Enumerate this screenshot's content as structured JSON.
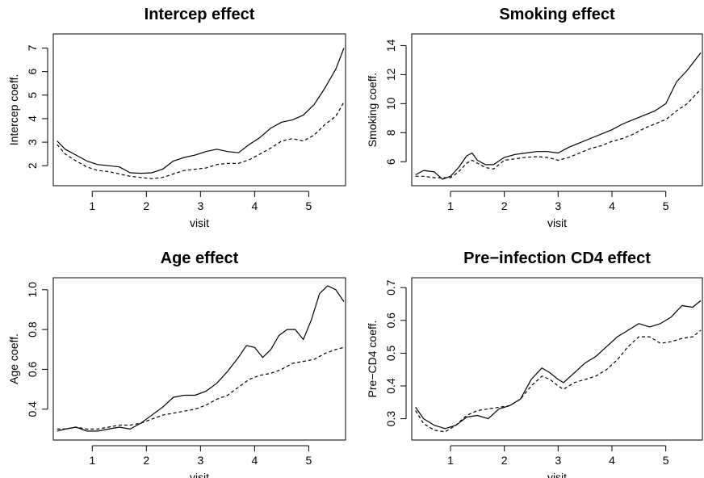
{
  "colors": {
    "ink": "#000000",
    "background": "#ffffff"
  },
  "chart_data": [
    {
      "type": "line",
      "title": "Intercep effect",
      "xlabel": "visit",
      "ylabel": "Intercep coeff.",
      "xlim": [
        0.28,
        5.68
      ],
      "ylim": [
        1.15,
        7.6
      ],
      "xticks": [
        1,
        2,
        3,
        4,
        5
      ],
      "yticks": [
        2,
        3,
        4,
        5,
        6,
        7
      ],
      "grid": false,
      "series": [
        {
          "style": "solid",
          "x": [
            0.35,
            0.5,
            0.7,
            0.9,
            1.1,
            1.3,
            1.5,
            1.7,
            1.9,
            2.1,
            2.3,
            2.5,
            2.7,
            2.9,
            3.1,
            3.3,
            3.5,
            3.7,
            3.9,
            4.1,
            4.3,
            4.5,
            4.7,
            4.9,
            5.1,
            5.3,
            5.5,
            5.65
          ],
          "y": [
            3.05,
            2.7,
            2.45,
            2.2,
            2.05,
            2.0,
            1.95,
            1.7,
            1.68,
            1.7,
            1.85,
            2.2,
            2.35,
            2.45,
            2.6,
            2.7,
            2.6,
            2.55,
            2.9,
            3.2,
            3.6,
            3.85,
            3.95,
            4.15,
            4.6,
            5.3,
            6.1,
            7.0
          ]
        },
        {
          "style": "dashed",
          "x": [
            0.35,
            0.5,
            0.7,
            0.9,
            1.1,
            1.3,
            1.5,
            1.7,
            1.9,
            2.1,
            2.3,
            2.5,
            2.7,
            2.9,
            3.1,
            3.3,
            3.5,
            3.7,
            3.9,
            4.1,
            4.3,
            4.5,
            4.7,
            4.9,
            5.1,
            5.3,
            5.5,
            5.65
          ],
          "y": [
            2.9,
            2.5,
            2.2,
            1.95,
            1.8,
            1.75,
            1.65,
            1.55,
            1.5,
            1.45,
            1.5,
            1.65,
            1.8,
            1.85,
            1.9,
            2.05,
            2.1,
            2.1,
            2.25,
            2.5,
            2.75,
            3.05,
            3.15,
            3.05,
            3.3,
            3.75,
            4.1,
            4.7
          ]
        }
      ]
    },
    {
      "type": "line",
      "title": "Smoking effect",
      "xlabel": "visit",
      "ylabel": "Smoking coeff.",
      "xlim": [
        0.28,
        5.68
      ],
      "ylim": [
        4.35,
        14.8
      ],
      "xticks": [
        1,
        2,
        3,
        4,
        5
      ],
      "yticks": [
        6,
        8,
        10,
        12,
        14
      ],
      "grid": false,
      "series": [
        {
          "style": "solid",
          "x": [
            0.35,
            0.5,
            0.7,
            0.85,
            1.0,
            1.15,
            1.3,
            1.4,
            1.5,
            1.65,
            1.8,
            2.0,
            2.2,
            2.4,
            2.6,
            2.8,
            3.0,
            3.2,
            3.4,
            3.6,
            3.8,
            4.0,
            4.2,
            4.4,
            4.6,
            4.8,
            5.0,
            5.2,
            5.4,
            5.65
          ],
          "y": [
            5.1,
            5.4,
            5.3,
            4.8,
            5.0,
            5.6,
            6.4,
            6.6,
            6.1,
            5.8,
            5.8,
            6.3,
            6.5,
            6.6,
            6.7,
            6.7,
            6.6,
            7.0,
            7.3,
            7.6,
            7.9,
            8.2,
            8.6,
            8.9,
            9.2,
            9.5,
            10.0,
            11.5,
            12.3,
            13.5
          ]
        },
        {
          "style": "dashed",
          "x": [
            0.35,
            0.5,
            0.7,
            0.85,
            1.0,
            1.15,
            1.3,
            1.4,
            1.5,
            1.65,
            1.8,
            2.0,
            2.2,
            2.4,
            2.6,
            2.8,
            3.0,
            3.2,
            3.4,
            3.6,
            3.8,
            4.0,
            4.2,
            4.4,
            4.6,
            4.8,
            5.0,
            5.2,
            5.4,
            5.65
          ],
          "y": [
            5.0,
            5.0,
            4.9,
            4.9,
            4.9,
            5.3,
            5.9,
            6.1,
            5.9,
            5.6,
            5.5,
            6.1,
            6.2,
            6.3,
            6.35,
            6.3,
            6.1,
            6.3,
            6.6,
            6.9,
            7.1,
            7.4,
            7.6,
            7.9,
            8.3,
            8.6,
            8.9,
            9.5,
            10.0,
            11.0
          ]
        }
      ]
    },
    {
      "type": "line",
      "title": "Age effect",
      "xlabel": "visit",
      "ylabel": "Age coeff.",
      "xlim": [
        0.28,
        5.68
      ],
      "ylim": [
        0.245,
        1.06
      ],
      "xticks": [
        1,
        2,
        3,
        4,
        5
      ],
      "yticks": [
        0.4,
        0.6,
        0.8,
        1.0
      ],
      "ytick_labels": [
        "0.4",
        "0.6",
        "0.8",
        "1.0"
      ],
      "grid": false,
      "series": [
        {
          "style": "solid",
          "x": [
            0.35,
            0.5,
            0.7,
            0.9,
            1.1,
            1.3,
            1.5,
            1.7,
            1.9,
            2.1,
            2.3,
            2.5,
            2.7,
            2.9,
            3.1,
            3.3,
            3.5,
            3.7,
            3.85,
            4.0,
            4.15,
            4.3,
            4.45,
            4.6,
            4.75,
            4.9,
            5.05,
            5.2,
            5.35,
            5.5,
            5.65
          ],
          "y": [
            0.29,
            0.3,
            0.31,
            0.29,
            0.29,
            0.3,
            0.31,
            0.3,
            0.33,
            0.37,
            0.41,
            0.46,
            0.47,
            0.47,
            0.49,
            0.53,
            0.59,
            0.66,
            0.72,
            0.71,
            0.66,
            0.7,
            0.77,
            0.8,
            0.8,
            0.75,
            0.85,
            0.98,
            1.02,
            1.0,
            0.94
          ]
        },
        {
          "style": "dashed",
          "x": [
            0.35,
            0.5,
            0.7,
            0.9,
            1.1,
            1.3,
            1.5,
            1.7,
            1.9,
            2.1,
            2.3,
            2.5,
            2.7,
            2.9,
            3.1,
            3.3,
            3.5,
            3.7,
            3.9,
            4.1,
            4.3,
            4.5,
            4.7,
            4.9,
            5.1,
            5.3,
            5.5,
            5.65
          ],
          "y": [
            0.3,
            0.3,
            0.31,
            0.3,
            0.3,
            0.31,
            0.32,
            0.32,
            0.33,
            0.35,
            0.37,
            0.38,
            0.39,
            0.4,
            0.42,
            0.45,
            0.47,
            0.51,
            0.55,
            0.57,
            0.58,
            0.6,
            0.63,
            0.64,
            0.65,
            0.68,
            0.7,
            0.71
          ]
        }
      ]
    },
    {
      "type": "line",
      "title": "Pre−infection CD4 effect",
      "xlabel": "visit",
      "ylabel": "Pre−CD4 coeff.",
      "xlim": [
        0.28,
        5.68
      ],
      "ylim": [
        0.235,
        0.73
      ],
      "xticks": [
        1,
        2,
        3,
        4,
        5
      ],
      "yticks": [
        0.3,
        0.4,
        0.5,
        0.6,
        0.7
      ],
      "grid": false,
      "series": [
        {
          "style": "solid",
          "x": [
            0.35,
            0.5,
            0.7,
            0.9,
            1.1,
            1.3,
            1.5,
            1.7,
            1.9,
            2.1,
            2.3,
            2.5,
            2.7,
            2.85,
            3.0,
            3.1,
            3.3,
            3.5,
            3.7,
            3.9,
            4.1,
            4.3,
            4.5,
            4.7,
            4.9,
            5.1,
            5.3,
            5.5,
            5.65
          ],
          "y": [
            0.335,
            0.3,
            0.28,
            0.27,
            0.28,
            0.305,
            0.31,
            0.3,
            0.33,
            0.34,
            0.36,
            0.42,
            0.455,
            0.44,
            0.42,
            0.41,
            0.44,
            0.47,
            0.49,
            0.52,
            0.55,
            0.57,
            0.59,
            0.58,
            0.59,
            0.61,
            0.645,
            0.64,
            0.66
          ]
        },
        {
          "style": "dashed",
          "x": [
            0.35,
            0.5,
            0.7,
            0.9,
            1.1,
            1.3,
            1.5,
            1.7,
            1.9,
            2.1,
            2.3,
            2.5,
            2.7,
            2.85,
            3.0,
            3.1,
            3.3,
            3.5,
            3.7,
            3.9,
            4.1,
            4.3,
            4.5,
            4.7,
            4.9,
            5.1,
            5.3,
            5.5,
            5.65
          ],
          "y": [
            0.325,
            0.285,
            0.265,
            0.26,
            0.28,
            0.31,
            0.325,
            0.33,
            0.335,
            0.34,
            0.36,
            0.4,
            0.43,
            0.42,
            0.4,
            0.39,
            0.41,
            0.42,
            0.43,
            0.45,
            0.48,
            0.52,
            0.55,
            0.55,
            0.53,
            0.535,
            0.545,
            0.55,
            0.57
          ]
        }
      ]
    }
  ]
}
